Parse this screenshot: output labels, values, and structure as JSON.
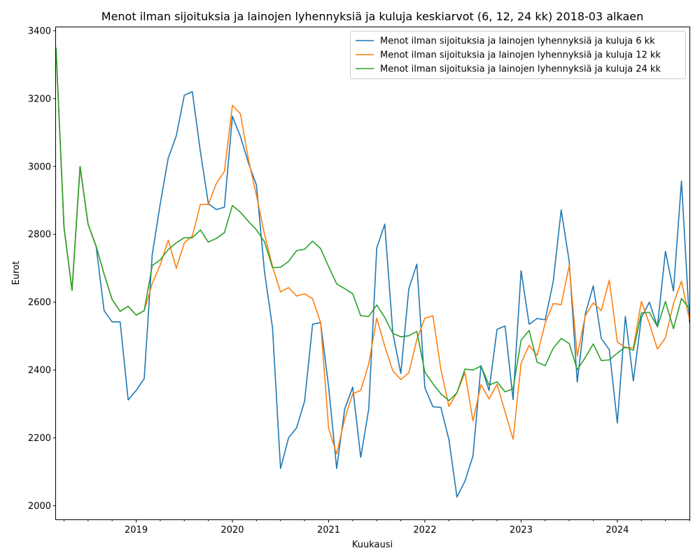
{
  "chart_data": {
    "type": "line",
    "title": "Menot ilman sijoituksia ja lainojen lyhennyksiä ja kuluja keskiarvot (6, 12, 24 kk) 2018-03 alkaen",
    "xlabel": "Kuukausi",
    "ylabel": "Eurot",
    "start_month": "2018-03",
    "xlim": [
      "2018-03",
      "2024-10"
    ],
    "ylim": [
      1960,
      3410
    ],
    "yticks": [
      2000,
      2200,
      2400,
      2600,
      2800,
      3000,
      3200,
      3400
    ],
    "xticks": [
      {
        "label": "2019",
        "date": "2019-01"
      },
      {
        "label": "2020",
        "date": "2020-01"
      },
      {
        "label": "2021",
        "date": "2021-01"
      },
      {
        "label": "2022",
        "date": "2022-01"
      },
      {
        "label": "2023",
        "date": "2023-01"
      },
      {
        "label": "2024",
        "date": "2024-01"
      }
    ],
    "grid": false,
    "legend_position": "top-right",
    "series": [
      {
        "name": "Menot ilman sijoituksia ja lainojen lyhennyksiä ja kuluja 6 kk",
        "color": "#1f77b4",
        "values": [
          3350,
          2820,
          2635,
          3000,
          2830,
          2765,
          2575,
          2542,
          2542,
          2312,
          2340,
          2375,
          2740,
          2890,
          3025,
          3090,
          3210,
          3220,
          3045,
          2890,
          2873,
          2880,
          3148,
          3088,
          3010,
          2945,
          2690,
          2525,
          2110,
          2200,
          2230,
          2308,
          2535,
          2540,
          2350,
          2110,
          2285,
          2350,
          2143,
          2285,
          2760,
          2830,
          2510,
          2390,
          2640,
          2712,
          2348,
          2292,
          2290,
          2195,
          2026,
          2073,
          2147,
          2413,
          2340,
          2520,
          2530,
          2313,
          2693,
          2535,
          2552,
          2548,
          2660,
          2872,
          2720,
          2365,
          2565,
          2648,
          2493,
          2460,
          2244,
          2558,
          2368,
          2555,
          2600,
          2528,
          2750,
          2633,
          2957,
          2540
        ]
      },
      {
        "name": "Menot ilman sijoituksia ja lainojen lyhennyksiä ja kuluja 12 kk",
        "color": "#ff7f0e",
        "values": [
          3350,
          2820,
          2635,
          3000,
          2830,
          2765,
          2683,
          2608,
          2573,
          2588,
          2562,
          2575,
          2655,
          2710,
          2783,
          2700,
          2775,
          2795,
          2888,
          2888,
          2950,
          2985,
          3180,
          3155,
          3020,
          2915,
          2800,
          2705,
          2630,
          2643,
          2618,
          2625,
          2610,
          2540,
          2228,
          2153,
          2256,
          2330,
          2340,
          2418,
          2553,
          2470,
          2398,
          2372,
          2392,
          2490,
          2553,
          2560,
          2402,
          2293,
          2333,
          2393,
          2250,
          2357,
          2315,
          2358,
          2277,
          2196,
          2420,
          2473,
          2443,
          2538,
          2596,
          2593,
          2708,
          2442,
          2560,
          2598,
          2575,
          2665,
          2483,
          2466,
          2466,
          2602,
          2537,
          2462,
          2495,
          2596,
          2662,
          2548
        ]
      },
      {
        "name": "Menot ilman sijoituksia ja lainojen lyhennyksiä ja kuluja 24 kk",
        "color": "#2ca02c",
        "values": [
          3350,
          2820,
          2635,
          3000,
          2830,
          2765,
          2683,
          2608,
          2573,
          2588,
          2562,
          2575,
          2708,
          2725,
          2755,
          2775,
          2790,
          2790,
          2813,
          2777,
          2788,
          2805,
          2885,
          2865,
          2838,
          2813,
          2778,
          2702,
          2703,
          2720,
          2752,
          2756,
          2780,
          2758,
          2705,
          2654,
          2640,
          2625,
          2560,
          2558,
          2592,
          2555,
          2508,
          2498,
          2501,
          2514,
          2394,
          2360,
          2330,
          2310,
          2333,
          2403,
          2400,
          2412,
          2356,
          2365,
          2336,
          2345,
          2488,
          2517,
          2423,
          2413,
          2464,
          2493,
          2478,
          2401,
          2437,
          2477,
          2428,
          2430,
          2450,
          2468,
          2458,
          2568,
          2570,
          2528,
          2602,
          2522,
          2611,
          2580
        ]
      }
    ]
  }
}
